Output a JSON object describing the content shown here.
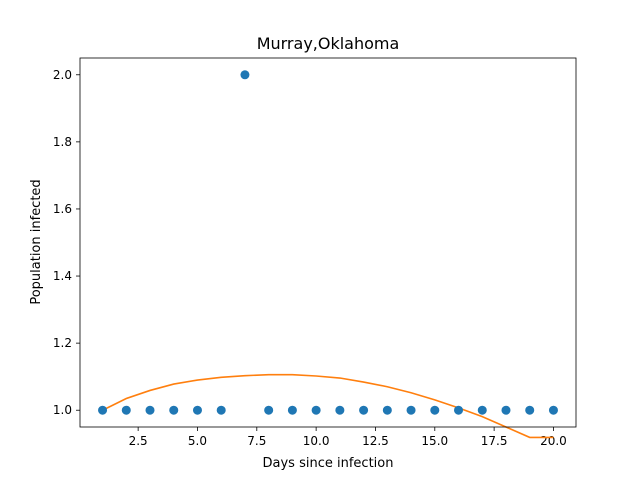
{
  "chart_data": {
    "type": "scatter",
    "title": "Murray,Oklahoma",
    "xlabel": "Days since infection",
    "ylabel": "Population infected",
    "xlim": [
      0.05,
      20.95
    ],
    "ylim": [
      0.95,
      2.05
    ],
    "xticks": [
      2.5,
      5.0,
      7.5,
      10.0,
      12.5,
      15.0,
      17.5,
      20.0
    ],
    "xtick_labels": [
      "2.5",
      "5.0",
      "7.5",
      "10.0",
      "12.5",
      "15.0",
      "17.5",
      "20.0"
    ],
    "yticks": [
      1.0,
      1.2,
      1.4,
      1.6,
      1.8,
      2.0
    ],
    "ytick_labels": [
      "1.0",
      "1.2",
      "1.4",
      "1.6",
      "1.8",
      "2.0"
    ],
    "grid": false,
    "series": [
      {
        "kind": "scatter",
        "color": "#1f77b4",
        "x": [
          1,
          2,
          3,
          4,
          5,
          6,
          7,
          8,
          9,
          10,
          11,
          12,
          13,
          14,
          15,
          16,
          17,
          18,
          19,
          20
        ],
        "y": [
          1,
          1,
          1,
          1,
          1,
          1,
          2,
          1,
          1,
          1,
          1,
          1,
          1,
          1,
          1,
          1,
          1,
          1,
          1,
          1
        ]
      },
      {
        "kind": "line",
        "color": "#ff7f0e",
        "x": [
          1,
          2,
          3,
          4,
          5,
          6,
          7,
          8,
          9,
          10,
          11,
          12,
          13,
          14,
          15,
          16,
          17,
          18,
          19,
          20
        ],
        "y": [
          1.0,
          1.035,
          1.059,
          1.078,
          1.09,
          1.098,
          1.103,
          1.106,
          1.106,
          1.102,
          1.096,
          1.084,
          1.07,
          1.052,
          1.031,
          1.007,
          0.981,
          0.95,
          0.919,
          0.919
        ]
      }
    ]
  }
}
